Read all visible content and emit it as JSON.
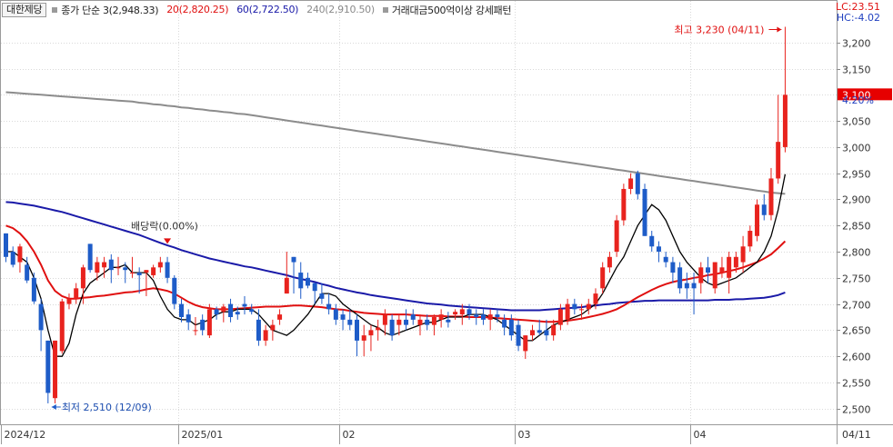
{
  "legend": {
    "stock_name": "대한제당",
    "ma3": "종가 단순 3(2,948.33)",
    "ma20": "20(2,820.25)",
    "ma60": "60(2,722.50)",
    "ma240": "240(2,910.50)",
    "pattern": "거래대금500억이상 강세패턴"
  },
  "right_info": {
    "lc": "LC:23.51",
    "hc": "HC:-4.02"
  },
  "last_price": {
    "label": "3,100",
    "change_pct": "4.20%"
  },
  "colors": {
    "up": "#e8231e",
    "down": "#1e5cc8",
    "ma3": "#000000",
    "ma20": "#e01010",
    "ma60": "#1a1aa8",
    "ma240": "#8c8c8c",
    "grid": "#d9d9d9"
  },
  "chart_data": {
    "type": "candlestick",
    "ylim": [
      2470,
      3250
    ],
    "y_ticks": [
      "2,500",
      "2,550",
      "2,600",
      "2,650",
      "2,700",
      "2,750",
      "2,800",
      "2,850",
      "2,900",
      "2,950",
      "3,000",
      "3,050",
      "3,100",
      "3,150",
      "3,200"
    ],
    "x_labels": [
      "2024/12",
      "2025/01",
      "02",
      "03",
      "04"
    ],
    "date_label_right": "04/11",
    "annotations": {
      "high": "최고 3,230 (04/11)",
      "low": "최저 2,510 (12/09)",
      "dividend": "배당락(0.00%)"
    },
    "candles": [
      [
        2835,
        2835,
        2780,
        2790
      ],
      [
        2800,
        2810,
        2770,
        2775
      ],
      [
        2780,
        2815,
        2760,
        2810
      ],
      [
        2775,
        2790,
        2740,
        2745
      ],
      [
        2750,
        2760,
        2700,
        2705
      ],
      [
        2700,
        2710,
        2610,
        2650
      ],
      [
        2630,
        2630,
        2510,
        2530
      ],
      [
        2520,
        2630,
        2510,
        2630
      ],
      [
        2610,
        2710,
        2605,
        2705
      ],
      [
        2700,
        2720,
        2690,
        2710
      ],
      [
        2710,
        2740,
        2700,
        2730
      ],
      [
        2730,
        2775,
        2700,
        2770
      ],
      [
        2815,
        2815,
        2760,
        2765
      ],
      [
        2760,
        2790,
        2745,
        2780
      ],
      [
        2770,
        2790,
        2750,
        2780
      ],
      [
        2785,
        2795,
        2740,
        2765
      ],
      [
        2770,
        2790,
        2755,
        2770
      ],
      [
        2770,
        2780,
        2740,
        2765
      ],
      [
        2760,
        2790,
        2750,
        2760
      ],
      [
        2760,
        2770,
        2720,
        2755
      ],
      [
        2760,
        2765,
        2715,
        2765
      ],
      [
        2755,
        2775,
        2750,
        2770
      ],
      [
        2770,
        2790,
        2760,
        2780
      ],
      [
        2780,
        2790,
        2740,
        2750
      ],
      [
        2750,
        2755,
        2690,
        2700
      ],
      [
        2700,
        2710,
        2665,
        2675
      ],
      [
        2680,
        2690,
        2650,
        2665
      ],
      [
        2650,
        2675,
        2640,
        2650
      ],
      [
        2670,
        2680,
        2640,
        2650
      ],
      [
        2640,
        2700,
        2635,
        2690
      ],
      [
        2690,
        2695,
        2670,
        2680
      ],
      [
        2685,
        2700,
        2665,
        2695
      ],
      [
        2700,
        2710,
        2665,
        2675
      ],
      [
        2685,
        2695,
        2670,
        2680
      ],
      [
        2700,
        2715,
        2680,
        2695
      ],
      [
        2690,
        2700,
        2680,
        2685
      ],
      [
        2670,
        2690,
        2620,
        2630
      ],
      [
        2630,
        2660,
        2620,
        2650
      ],
      [
        2650,
        2670,
        2630,
        2660
      ],
      [
        2670,
        2690,
        2660,
        2680
      ],
      [
        2720,
        2800,
        2720,
        2750
      ],
      [
        2790,
        2790,
        2720,
        2780
      ],
      [
        2760,
        2780,
        2710,
        2730
      ],
      [
        2750,
        2760,
        2730,
        2735
      ],
      [
        2740,
        2740,
        2700,
        2725
      ],
      [
        2720,
        2740,
        2700,
        2710
      ],
      [
        2700,
        2720,
        2680,
        2690
      ],
      [
        2690,
        2700,
        2660,
        2670
      ],
      [
        2680,
        2690,
        2650,
        2670
      ],
      [
        2670,
        2690,
        2650,
        2660
      ],
      [
        2670,
        2680,
        2600,
        2630
      ],
      [
        2630,
        2660,
        2600,
        2640
      ],
      [
        2640,
        2660,
        2610,
        2650
      ],
      [
        2650,
        2670,
        2630,
        2655
      ],
      [
        2660,
        2690,
        2640,
        2680
      ],
      [
        2670,
        2680,
        2630,
        2640
      ],
      [
        2660,
        2680,
        2640,
        2670
      ],
      [
        2670,
        2690,
        2650,
        2660
      ],
      [
        2680,
        2690,
        2660,
        2670
      ],
      [
        2660,
        2680,
        2640,
        2670
      ],
      [
        2670,
        2680,
        2650,
        2660
      ],
      [
        2660,
        2680,
        2640,
        2675
      ],
      [
        2670,
        2690,
        2655,
        2680
      ],
      [
        2670,
        2685,
        2655,
        2665
      ],
      [
        2680,
        2690,
        2670,
        2685
      ],
      [
        2680,
        2700,
        2660,
        2690
      ],
      [
        2690,
        2700,
        2670,
        2680
      ],
      [
        2680,
        2690,
        2660,
        2675
      ],
      [
        2680,
        2690,
        2660,
        2670
      ],
      [
        2670,
        2690,
        2650,
        2680
      ],
      [
        2680,
        2690,
        2665,
        2675
      ],
      [
        2670,
        2680,
        2640,
        2655
      ],
      [
        2670,
        2680,
        2630,
        2640
      ],
      [
        2660,
        2670,
        2610,
        2620
      ],
      [
        2610,
        2640,
        2595,
        2640
      ],
      [
        2640,
        2660,
        2630,
        2650
      ],
      [
        2650,
        2670,
        2640,
        2645
      ],
      [
        2650,
        2670,
        2630,
        2640
      ],
      [
        2640,
        2670,
        2630,
        2660
      ],
      [
        2660,
        2700,
        2650,
        2690
      ],
      [
        2670,
        2710,
        2660,
        2700
      ],
      [
        2700,
        2710,
        2680,
        2690
      ],
      [
        2690,
        2700,
        2670,
        2690
      ],
      [
        2690,
        2710,
        2680,
        2700
      ],
      [
        2700,
        2730,
        2690,
        2720
      ],
      [
        2730,
        2780,
        2720,
        2770
      ],
      [
        2770,
        2800,
        2760,
        2790
      ],
      [
        2800,
        2870,
        2790,
        2860
      ],
      [
        2860,
        2930,
        2850,
        2920
      ],
      [
        2920,
        2950,
        2910,
        2940
      ],
      [
        2950,
        2955,
        2900,
        2910
      ],
      [
        2920,
        2930,
        2830,
        2830
      ],
      [
        2830,
        2840,
        2800,
        2810
      ],
      [
        2810,
        2820,
        2780,
        2800
      ],
      [
        2790,
        2800,
        2770,
        2780
      ],
      [
        2780,
        2790,
        2740,
        2760
      ],
      [
        2770,
        2780,
        2720,
        2730
      ],
      [
        2740,
        2760,
        2710,
        2730
      ],
      [
        2740,
        2760,
        2680,
        2730
      ],
      [
        2740,
        2780,
        2720,
        2770
      ],
      [
        2770,
        2790,
        2740,
        2760
      ],
      [
        2730,
        2780,
        2720,
        2780
      ],
      [
        2760,
        2790,
        2750,
        2770
      ],
      [
        2750,
        2800,
        2720,
        2790
      ],
      [
        2770,
        2800,
        2760,
        2790
      ],
      [
        2780,
        2830,
        2760,
        2810
      ],
      [
        2810,
        2850,
        2800,
        2840
      ],
      [
        2830,
        2900,
        2820,
        2890
      ],
      [
        2890,
        2910,
        2860,
        2870
      ],
      [
        2870,
        2960,
        2860,
        2940
      ],
      [
        2940,
        3100,
        2930,
        3010
      ],
      [
        3000,
        3230,
        2990,
        3100
      ]
    ],
    "ma3": [
      2800,
      2800,
      2790,
      2780,
      2750,
      2710,
      2650,
      2600,
      2600,
      2625,
      2680,
      2720,
      2740,
      2750,
      2760,
      2770,
      2770,
      2775,
      2760,
      2760,
      2760,
      2745,
      2715,
      2690,
      2675,
      2670,
      2670,
      2660,
      2665,
      2670,
      2680,
      2685,
      2685,
      2690,
      2690,
      2690,
      2680,
      2665,
      2650,
      2645,
      2640,
      2650,
      2665,
      2680,
      2700,
      2720,
      2720,
      2715,
      2700,
      2690,
      2680,
      2670,
      2660,
      2655,
      2645,
      2640,
      2645,
      2650,
      2655,
      2660,
      2665,
      2665,
      2670,
      2675,
      2675,
      2675,
      2680,
      2680,
      2680,
      2675,
      2670,
      2660,
      2650,
      2640,
      2630,
      2630,
      2640,
      2650,
      2660,
      2665,
      2670,
      2675,
      2680,
      2690,
      2700,
      2720,
      2745,
      2770,
      2790,
      2820,
      2850,
      2870,
      2890,
      2880,
      2860,
      2830,
      2800,
      2780,
      2765,
      2750,
      2740,
      2735,
      2740,
      2745,
      2750,
      2760,
      2770,
      2780,
      2800,
      2830,
      2880,
      2948
    ],
    "ma20": [
      2850,
      2845,
      2835,
      2820,
      2800,
      2775,
      2745,
      2725,
      2715,
      2710,
      2710,
      2712,
      2713,
      2715,
      2716,
      2718,
      2720,
      2722,
      2723,
      2725,
      2728,
      2730,
      2728,
      2725,
      2720,
      2712,
      2704,
      2698,
      2694,
      2692,
      2690,
      2690,
      2690,
      2691,
      2692,
      2693,
      2694,
      2695,
      2695,
      2695,
      2696,
      2697,
      2697,
      2696,
      2695,
      2694,
      2692,
      2690,
      2689,
      2687,
      2685,
      2683,
      2682,
      2681,
      2680,
      2680,
      2680,
      2680,
      2679,
      2678,
      2677,
      2677,
      2677,
      2676,
      2676,
      2676,
      2675,
      2675,
      2675,
      2674,
      2673,
      2672,
      2671,
      2670,
      2669,
      2668,
      2667,
      2666,
      2666,
      2667,
      2668,
      2670,
      2672,
      2675,
      2678,
      2681,
      2685,
      2690,
      2697,
      2705,
      2713,
      2720,
      2727,
      2733,
      2738,
      2742,
      2745,
      2747,
      2750,
      2752,
      2755,
      2757,
      2760,
      2763,
      2766,
      2770,
      2775,
      2780,
      2787,
      2795,
      2807,
      2820
    ],
    "ma60": [
      2895,
      2894,
      2892,
      2890,
      2888,
      2885,
      2882,
      2879,
      2876,
      2872,
      2868,
      2864,
      2860,
      2856,
      2852,
      2848,
      2844,
      2840,
      2836,
      2832,
      2827,
      2822,
      2817,
      2812,
      2808,
      2803,
      2799,
      2795,
      2791,
      2787,
      2784,
      2781,
      2778,
      2775,
      2772,
      2770,
      2767,
      2764,
      2761,
      2758,
      2755,
      2751,
      2748,
      2745,
      2742,
      2738,
      2735,
      2731,
      2728,
      2725,
      2722,
      2720,
      2717,
      2715,
      2713,
      2711,
      2709,
      2707,
      2705,
      2703,
      2701,
      2700,
      2699,
      2697,
      2696,
      2695,
      2694,
      2693,
      2692,
      2691,
      2690,
      2689,
      2688,
      2688,
      2688,
      2688,
      2688,
      2689,
      2690,
      2691,
      2692,
      2693,
      2694,
      2696,
      2697,
      2699,
      2700,
      2702,
      2703,
      2704,
      2705,
      2706,
      2706,
      2707,
      2707,
      2707,
      2707,
      2707,
      2707,
      2707,
      2707,
      2708,
      2708,
      2708,
      2709,
      2709,
      2710,
      2711,
      2712,
      2714,
      2717,
      2722
    ],
    "ma240": [
      3105,
      3104,
      3103,
      3102,
      3101,
      3100,
      3099,
      3098,
      3097,
      3096,
      3095,
      3094,
      3093,
      3092,
      3091,
      3090,
      3089,
      3088,
      3087,
      3085,
      3084,
      3082,
      3081,
      3079,
      3078,
      3076,
      3075,
      3073,
      3072,
      3070,
      3069,
      3067,
      3066,
      3064,
      3063,
      3061,
      3059,
      3057,
      3055,
      3053,
      3051,
      3049,
      3047,
      3045,
      3043,
      3041,
      3039,
      3037,
      3035,
      3033,
      3031,
      3029,
      3027,
      3025,
      3023,
      3021,
      3019,
      3017,
      3015,
      3013,
      3011,
      3009,
      3007,
      3005,
      3003,
      3001,
      2999,
      2997,
      2995,
      2993,
      2991,
      2989,
      2987,
      2985,
      2983,
      2981,
      2979,
      2977,
      2975,
      2973,
      2971,
      2969,
      2967,
      2965,
      2963,
      2961,
      2959,
      2957,
      2955,
      2953,
      2951,
      2949,
      2947,
      2945,
      2943,
      2941,
      2939,
      2937,
      2935,
      2933,
      2931,
      2929,
      2927,
      2925,
      2923,
      2921,
      2919,
      2917,
      2915,
      2913,
      2912,
      2910.5
    ]
  }
}
